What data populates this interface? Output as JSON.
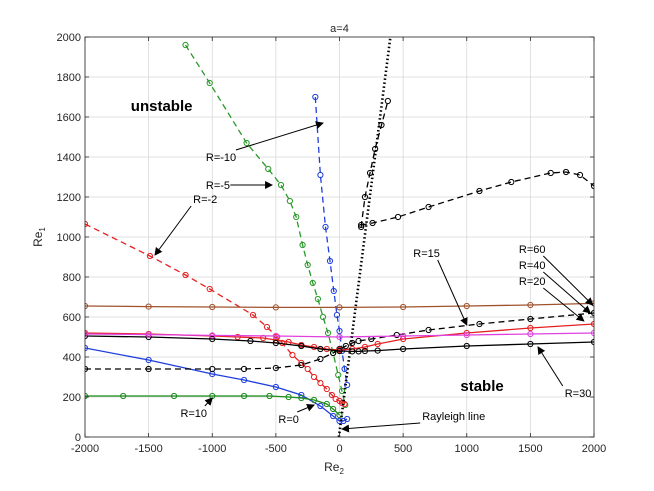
{
  "chart_data": {
    "type": "line",
    "title": "a=4",
    "xlabel": "Re",
    "xlabel_sub": "2",
    "ylabel": "Re",
    "ylabel_sub": "1",
    "xlim": [
      -2000,
      2000
    ],
    "ylim": [
      0,
      2000
    ],
    "xticks": [
      -2000,
      -1500,
      -1000,
      -500,
      0,
      500,
      1000,
      1500,
      2000
    ],
    "yticks": [
      0,
      200,
      400,
      600,
      800,
      1000,
      1200,
      1400,
      1600,
      1800,
      2000
    ],
    "grid": true,
    "series": [
      {
        "name": "R=-10",
        "color": "#1f3fdc",
        "dash": "dashed",
        "marker": "circle",
        "x": [
          -190,
          -150,
          -110,
          -75,
          -45,
          -20,
          0,
          20,
          40,
          60
        ],
        "y": [
          1700,
          1310,
          1050,
          880,
          730,
          610,
          530,
          430,
          340,
          260
        ]
      },
      {
        "name": "R=-5",
        "color": "#2a9a2a",
        "dash": "dashed",
        "marker": "circle",
        "x": [
          -1210,
          -1020,
          -730,
          -560,
          -460,
          -390,
          -340,
          -290,
          -250,
          -210,
          -170,
          -130,
          -90,
          -50,
          -10,
          20,
          45
        ],
        "y": [
          1960,
          1770,
          1470,
          1340,
          1260,
          1180,
          1100,
          960,
          860,
          770,
          690,
          600,
          520,
          420,
          310,
          230,
          160
        ]
      },
      {
        "name": "R=-2",
        "color": "#e52020",
        "dash": "dashed",
        "marker": "circle",
        "x": [
          -2000,
          -1490,
          -1210,
          -1020,
          -680,
          -570,
          -490,
          -450,
          -370,
          -300,
          -250,
          -200,
          -150,
          -100,
          -60,
          -30,
          0,
          20,
          40
        ],
        "y": [
          1065,
          905,
          810,
          740,
          610,
          550,
          500,
          470,
          410,
          370,
          340,
          300,
          270,
          240,
          210,
          190,
          180,
          170,
          165
        ]
      },
      {
        "name": "R=0",
        "color": "#1f3fdc",
        "dash": "solid",
        "marker": "circle",
        "x": [
          -2000,
          -1500,
          -1000,
          -750,
          -500,
          -300,
          -150,
          -50,
          0,
          30,
          60
        ],
        "y": [
          445,
          385,
          315,
          285,
          250,
          210,
          155,
          105,
          80,
          80,
          90
        ]
      },
      {
        "name": "R=10",
        "color": "#1a8a1a",
        "dash": "solid",
        "marker": "circle",
        "x": [
          -2000,
          -1700,
          -1300,
          -1000,
          -750,
          -550,
          -400,
          -300,
          -200,
          -100,
          -50,
          0
        ],
        "y": [
          205,
          205,
          205,
          205,
          205,
          205,
          200,
          195,
          185,
          165,
          140,
          110
        ]
      },
      {
        "name": "R=15",
        "color": "#000000",
        "dash": "dashed",
        "marker": "circle",
        "x": [
          -2000,
          -1500,
          -1000,
          -750,
          -500,
          -300,
          -150,
          -50,
          0,
          50,
          100,
          150,
          250,
          450,
          700,
          1100,
          1500,
          2000
        ],
        "y": [
          340,
          340,
          340,
          340,
          345,
          360,
          390,
          420,
          440,
          455,
          470,
          480,
          490,
          510,
          535,
          565,
          590,
          620
        ]
      },
      {
        "name": "R=15",
        "color": "#000000",
        "dash": "dashed",
        "marker": "circle",
        "x": [
          170,
          260,
          460,
          700,
          1100,
          1350,
          1660,
          1780,
          1890,
          2000
        ],
        "y": [
          1060,
          1070,
          1100,
          1150,
          1230,
          1275,
          1320,
          1325,
          1310,
          1255
        ]
      },
      {
        "name": "R=15",
        "color": "#000000",
        "dash": "dashed",
        "marker": "circle",
        "x": [
          170,
          200,
          240,
          280,
          330,
          380
        ],
        "y": [
          1050,
          1200,
          1320,
          1440,
          1560,
          1680
        ]
      },
      {
        "name": "R=20",
        "color": "#e52020",
        "dash": "solid",
        "marker": "circle",
        "x": [
          -2000,
          -1500,
          -1000,
          -800,
          -600,
          -500,
          -400,
          -300,
          -200,
          -100,
          0,
          100,
          200,
          300,
          500,
          1000,
          1500,
          2000
        ],
        "y": [
          520,
          515,
          505,
          500,
          495,
          485,
          475,
          460,
          450,
          440,
          435,
          440,
          450,
          465,
          490,
          520,
          545,
          565
        ]
      },
      {
        "name": "R=30",
        "color": "#000000",
        "dash": "solid",
        "marker": "circle",
        "x": [
          -2000,
          -1500,
          -1000,
          -700,
          -500,
          -300,
          -150,
          0,
          100,
          150,
          200,
          300,
          500,
          1000,
          1500,
          2000
        ],
        "y": [
          505,
          500,
          490,
          480,
          470,
          455,
          440,
          430,
          428,
          428,
          430,
          432,
          440,
          455,
          465,
          475
        ]
      },
      {
        "name": "R=40",
        "color": "#e040e0",
        "dash": "solid",
        "marker": "circle",
        "x": [
          -2000,
          -1500,
          -1000,
          -500,
          0,
          500,
          1000,
          1500,
          2000
        ],
        "y": [
          515,
          512,
          508,
          505,
          500,
          505,
          510,
          515,
          520
        ]
      },
      {
        "name": "R=60",
        "color": "#a0522d",
        "dash": "solid",
        "marker": "circle",
        "x": [
          -2000,
          -1500,
          -1000,
          -500,
          0,
          500,
          1000,
          1500,
          2000
        ],
        "y": [
          655,
          652,
          650,
          648,
          648,
          650,
          655,
          660,
          668
        ]
      },
      {
        "name": "Rayleigh line",
        "color": "#000000",
        "dash": "dotted",
        "marker": "none",
        "x": [
          -5,
          400
        ],
        "y": [
          0,
          2000
        ]
      }
    ],
    "annotations": [
      {
        "text": "R=-10",
        "x": -1050,
        "y": 1380,
        "ax": -130,
        "ay": 1570
      },
      {
        "text": "R=-5",
        "x": -1050,
        "y": 1240,
        "ax": -530,
        "ay": 1260
      },
      {
        "text": "R=-2",
        "x": -1150,
        "y": 1170,
        "ax": -1450,
        "ay": 910
      },
      {
        "text": "R=10",
        "x": -1250,
        "y": 100,
        "ax": -1000,
        "ay": 195
      },
      {
        "text": "R=0",
        "x": -480,
        "y": 70,
        "ax": -200,
        "ay": 160
      },
      {
        "text": "R=15",
        "x": 580,
        "y": 900,
        "ax": 1000,
        "ay": 560
      },
      {
        "text": "R=60",
        "x": 1410,
        "y": 920,
        "ax": 1990,
        "ay": 660
      },
      {
        "text": "R=40",
        "x": 1410,
        "y": 840,
        "ax": 1970,
        "ay": 620
      },
      {
        "text": "R=20",
        "x": 1410,
        "y": 760,
        "ax": 1920,
        "ay": 580
      },
      {
        "text": "R=30",
        "x": 1770,
        "y": 200,
        "ax": 1560,
        "ay": 450
      },
      {
        "text": "Rayleigh line",
        "x": 650,
        "y": 85,
        "ax": 20,
        "ay": 40
      }
    ],
    "regions": [
      {
        "text": "unstable",
        "x": -1640,
        "y": 1630
      },
      {
        "text": "stable",
        "x": 950,
        "y": 230
      }
    ]
  }
}
